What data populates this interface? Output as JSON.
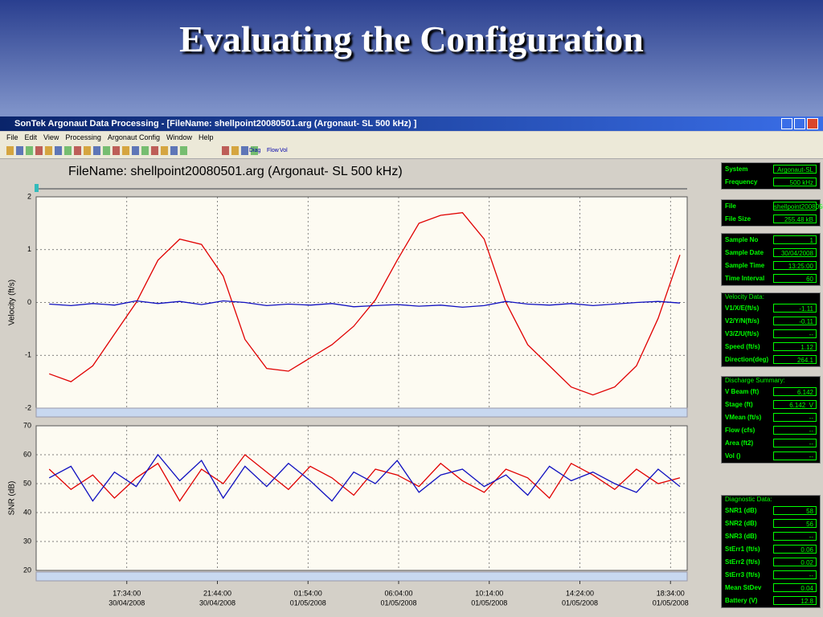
{
  "slide_title": "Evaluating the Configuration",
  "window": {
    "title": "SonTek Argonaut Data Processing - [FileName: shellpoint20080501.arg  (Argonaut- SL  500 kHz) ]",
    "menu": [
      "File",
      "Edit",
      "View",
      "Processing",
      "Argonaut Config",
      "Window",
      "Help"
    ],
    "toolbar": [
      "Diag",
      "Flow",
      "Vol"
    ]
  },
  "chart_header": "FileName: shellpoint20080501.arg  (Argonaut- SL  500 kHz)",
  "chart_data": [
    {
      "type": "line",
      "ylabel": "Velocity (ft/s)",
      "xlim": [
        "30/04/2008 13:24",
        "01/05/2008 19:20"
      ],
      "ylim": [
        -2,
        2
      ],
      "yticks": [
        -2,
        -1,
        0,
        1,
        2
      ],
      "grid": true,
      "x": [
        "30/04/2008 14:00",
        "30/04/2008 15:00",
        "30/04/2008 16:00",
        "30/04/2008 17:00",
        "30/04/2008 18:00",
        "30/04/2008 19:00",
        "30/04/2008 20:00",
        "30/04/2008 21:00",
        "30/04/2008 22:00",
        "30/04/2008 23:00",
        "01/05/2008 00:00",
        "01/05/2008 01:00",
        "01/05/2008 02:00",
        "01/05/2008 03:00",
        "01/05/2008 04:00",
        "01/05/2008 05:00",
        "01/05/2008 06:00",
        "01/05/2008 07:00",
        "01/05/2008 08:00",
        "01/05/2008 09:00",
        "01/05/2008 10:00",
        "01/05/2008 11:00",
        "01/05/2008 12:00",
        "01/05/2008 13:00",
        "01/05/2008 14:00",
        "01/05/2008 15:00",
        "01/05/2008 16:00",
        "01/05/2008 17:00",
        "01/05/2008 18:00",
        "01/05/2008 19:00"
      ],
      "series": [
        {
          "color": "#e00000",
          "values": [
            -1.35,
            -1.5,
            -1.2,
            -0.6,
            0.0,
            0.8,
            1.2,
            1.1,
            0.5,
            -0.7,
            -1.25,
            -1.3,
            -1.05,
            -0.8,
            -0.45,
            0.05,
            0.8,
            1.5,
            1.65,
            1.7,
            1.2,
            0.0,
            -0.8,
            -1.2,
            -1.6,
            -1.75,
            -1.6,
            -1.2,
            -0.3,
            0.9
          ]
        },
        {
          "color": "#1010c0",
          "values": [
            -0.03,
            -0.06,
            -0.02,
            -0.05,
            0.03,
            -0.02,
            0.02,
            -0.04,
            0.03,
            0.0,
            -0.06,
            -0.03,
            -0.05,
            -0.02,
            -0.08,
            -0.06,
            -0.04,
            -0.07,
            -0.05,
            -0.09,
            -0.06,
            0.02,
            -0.03,
            -0.05,
            -0.02,
            -0.06,
            -0.03,
            0.0,
            0.02,
            -0.01
          ]
        }
      ]
    },
    {
      "type": "line",
      "ylabel": "SNR (dB)",
      "xlim": [
        "30/04/2008 13:24",
        "01/05/2008 19:20"
      ],
      "ylim": [
        20,
        70
      ],
      "yticks": [
        20,
        30,
        40,
        50,
        60,
        70
      ],
      "xticks": [
        {
          "value": "30/04/2008 17:34",
          "label": [
            "17:34:00",
            "30/04/2008"
          ]
        },
        {
          "value": "30/04/2008 21:44",
          "label": [
            "21:44:00",
            "30/04/2008"
          ]
        },
        {
          "value": "01/05/2008 01:54",
          "label": [
            "01:54:00",
            "01/05/2008"
          ]
        },
        {
          "value": "01/05/2008 06:04",
          "label": [
            "06:04:00",
            "01/05/2008"
          ]
        },
        {
          "value": "01/05/2008 10:14",
          "label": [
            "10:14:00",
            "01/05/2008"
          ]
        },
        {
          "value": "01/05/2008 14:24",
          "label": [
            "14:24:00",
            "01/05/2008"
          ]
        },
        {
          "value": "01/05/2008 18:34",
          "label": [
            "18:34:00",
            "01/05/2008"
          ]
        }
      ],
      "grid": true,
      "x": [
        "30/04/2008 14:00",
        "30/04/2008 15:00",
        "30/04/2008 16:00",
        "30/04/2008 17:00",
        "30/04/2008 18:00",
        "30/04/2008 19:00",
        "30/04/2008 20:00",
        "30/04/2008 21:00",
        "30/04/2008 22:00",
        "30/04/2008 23:00",
        "01/05/2008 00:00",
        "01/05/2008 01:00",
        "01/05/2008 02:00",
        "01/05/2008 03:00",
        "01/05/2008 04:00",
        "01/05/2008 05:00",
        "01/05/2008 06:00",
        "01/05/2008 07:00",
        "01/05/2008 08:00",
        "01/05/2008 09:00",
        "01/05/2008 10:00",
        "01/05/2008 11:00",
        "01/05/2008 12:00",
        "01/05/2008 13:00",
        "01/05/2008 14:00",
        "01/05/2008 15:00",
        "01/05/2008 16:00",
        "01/05/2008 17:00",
        "01/05/2008 18:00",
        "01/05/2008 19:00"
      ],
      "series": [
        {
          "color": "#e00000",
          "values": [
            55,
            48,
            53,
            45,
            52,
            57,
            44,
            55,
            50,
            60,
            54,
            48,
            56,
            52,
            46,
            55,
            53,
            49,
            57,
            51,
            47,
            55,
            52,
            45,
            57,
            53,
            48,
            55,
            50,
            52
          ]
        },
        {
          "color": "#1010c0",
          "values": [
            52,
            56,
            44,
            54,
            49,
            60,
            51,
            58,
            45,
            56,
            49,
            57,
            51,
            44,
            54,
            50,
            58,
            47,
            53,
            55,
            49,
            53,
            46,
            56,
            51,
            54,
            50,
            47,
            55,
            49
          ]
        }
      ]
    }
  ],
  "info_panel": [
    {
      "rows": [
        [
          "System",
          "Argonaut-SL"
        ],
        [
          "Frequency",
          "500 kHz"
        ]
      ]
    },
    {
      "rows": [
        [
          "File",
          "shellpoint20080501"
        ],
        [
          "File Size",
          "255.48 kB"
        ]
      ]
    },
    {
      "rows": [
        [
          "Sample No",
          "1"
        ],
        [
          "Sample Date",
          "30/04/2008"
        ],
        [
          "Sample Time",
          "13:25:00"
        ],
        [
          "Time Interval",
          "60"
        ]
      ]
    },
    {
      "heading": "Velocity Data:",
      "rows": [
        [
          "V1/X/E(ft/s)",
          "-1.11"
        ],
        [
          "V2/Y/N(ft/s)",
          "-0.11"
        ],
        [
          "V3/Z/U(ft/s)",
          "--"
        ],
        [
          "Speed (ft/s)",
          "1.12"
        ],
        [
          "Direction(deg)",
          "264.1"
        ]
      ]
    },
    {
      "heading": "Discharge Summary:",
      "rows": [
        [
          "V Beam (ft)",
          "6.142"
        ],
        [
          "Stage (ft)",
          "6.142  V"
        ],
        [
          "VMean (ft/s)",
          "--"
        ],
        [
          "Flow (cfs)",
          "--"
        ],
        [
          "Area (ft2)",
          "--"
        ],
        [
          "Vol ()",
          "--"
        ]
      ]
    },
    {
      "heading": "Diagnostic Data:",
      "rows": [
        [
          "SNR1 (dB)",
          "58"
        ],
        [
          "SNR2 (dB)",
          "56"
        ],
        [
          "SNR3 (dB)",
          "--"
        ],
        [
          "StErr1 (ft/s)",
          "0.06"
        ],
        [
          "StErr2 (ft/s)",
          "0.02"
        ],
        [
          "StErr3 (ft/s)",
          "--"
        ],
        [
          "Mean StDev",
          "0.04"
        ],
        [
          "Battery (V)",
          "12.8"
        ]
      ]
    }
  ]
}
